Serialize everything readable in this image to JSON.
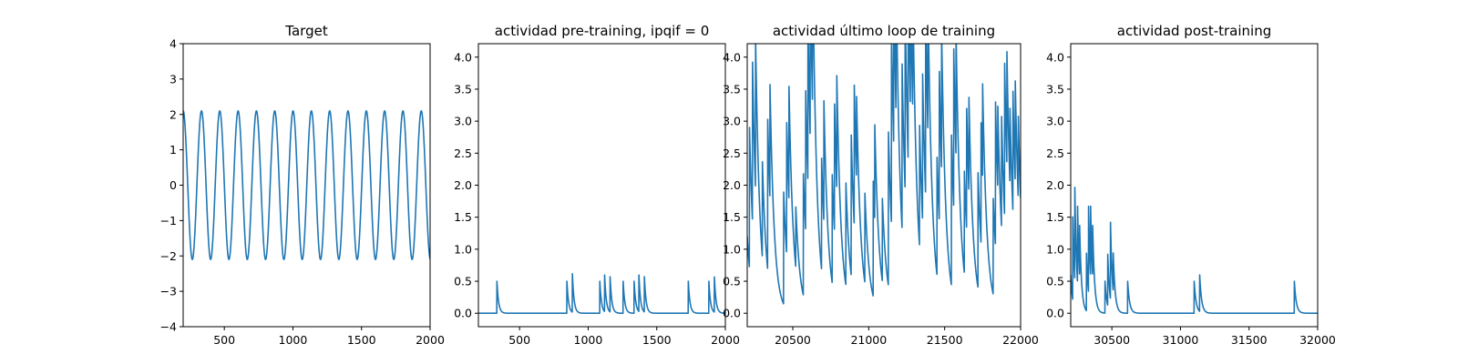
{
  "chart_data": [
    {
      "type": "line",
      "title": "Target",
      "xlim": [
        200,
        2000
      ],
      "ylim": [
        -4,
        4
      ],
      "xticks": [
        500,
        1000,
        1500,
        2000
      ],
      "yticks": [
        -4,
        -3,
        -2,
        -1,
        0,
        1,
        2,
        3,
        4
      ],
      "x_tick_labels": [
        "500",
        "1000",
        "1500",
        "2000"
      ],
      "y_tick_labels": [
        "−4",
        "−3",
        "−2",
        "−1",
        "0",
        "1",
        "2",
        "3",
        "4"
      ],
      "series": [
        {
          "kind": "sine",
          "amplitude": 2.1,
          "period": 133.5,
          "phase_x": 200,
          "color": "#1f77b4"
        }
      ]
    },
    {
      "type": "line",
      "title": "actividad pre-training, ipqif = 0",
      "xlim": [
        200,
        2000
      ],
      "ylim": [
        -0.21,
        4.21
      ],
      "xticks": [
        500,
        1000,
        1500,
        2000
      ],
      "yticks": [
        0.0,
        0.5,
        1.0,
        1.5,
        2.0,
        2.5,
        3.0,
        3.5,
        4.0
      ],
      "x_tick_labels": [
        "500",
        "1000",
        "1500",
        "2000"
      ],
      "y_tick_labels": [
        "0.0",
        "0.5",
        "1.0",
        "1.5",
        "2.0",
        "2.5",
        "3.0",
        "3.5",
        "4.0"
      ],
      "series": [
        {
          "kind": "decay_spikes",
          "tau": 12,
          "x_start": 200,
          "x_end": 2000,
          "spikes": [
            [
              335,
              0.5
            ],
            [
              845,
              0.5
            ],
            [
              885,
              0.6
            ],
            [
              1085,
              0.5
            ],
            [
              1120,
              0.57
            ],
            [
              1160,
              0.55
            ],
            [
              1255,
              0.5
            ],
            [
              1335,
              0.5
            ],
            [
              1370,
              0.57
            ],
            [
              1410,
              0.55
            ],
            [
              1730,
              0.5
            ],
            [
              1880,
              0.5
            ],
            [
              1920,
              0.55
            ]
          ],
          "color": "#1f77b4"
        }
      ]
    },
    {
      "type": "line",
      "title": "actividad último loop de training",
      "xlim": [
        20200,
        22000
      ],
      "ylim": [
        -0.21,
        4.21
      ],
      "xticks": [
        20500,
        21000,
        21500,
        22000
      ],
      "yticks": [
        0.0,
        0.5,
        1.0,
        1.5,
        2.0,
        2.5,
        3.0,
        3.5,
        4.0
      ],
      "x_tick_labels": [
        "20500",
        "21000",
        "21500",
        "22000"
      ],
      "y_tick_labels": [
        "0.0",
        "0.5",
        "1.0",
        "1.5",
        "2.0",
        "2.5",
        "3.0",
        "3.5",
        "4.0"
      ],
      "series": [
        {
          "kind": "decay_spikes",
          "tau": 28,
          "x_start": 20200,
          "x_end": 22000,
          "spikes": [
            [
              20200,
              1.2
            ],
            [
              20215,
              2.2
            ],
            [
              20235,
              2.5
            ],
            [
              20255,
              2.4
            ],
            [
              20300,
              1.5
            ],
            [
              20335,
              2.35
            ],
            [
              20350,
              1.8
            ],
            [
              20440,
              1.75
            ],
            [
              20460,
              2.05
            ],
            [
              20475,
              1.8
            ],
            [
              20520,
              0.95
            ],
            [
              20570,
              1.9
            ],
            [
              20585,
              2.2
            ],
            [
              20600,
              2.6
            ],
            [
              20615,
              2.8
            ],
            [
              20630,
              2.5
            ],
            [
              20690,
              1.75
            ],
            [
              20705,
              1.9
            ],
            [
              20760,
              1.7
            ],
            [
              20775,
              2.0
            ],
            [
              20790,
              1.8
            ],
            [
              20850,
              1.6
            ],
            [
              20885,
              2.2
            ],
            [
              20905,
              2.2
            ],
            [
              20920,
              1.3
            ],
            [
              20975,
              1.4
            ],
            [
              21030,
              1.8
            ],
            [
              21040,
              1.5
            ],
            [
              21090,
              1.3
            ],
            [
              21130,
              2.4
            ],
            [
              21150,
              3.05
            ],
            [
              21165,
              2.7
            ],
            [
              21180,
              2.3
            ],
            [
              21220,
              2.6
            ],
            [
              21240,
              2.9
            ],
            [
              21260,
              3.1
            ],
            [
              21275,
              2.2
            ],
            [
              21290,
              2.0
            ],
            [
              21335,
              1.9
            ],
            [
              21355,
              2.3
            ],
            [
              21375,
              2.95
            ],
            [
              21390,
              2.2
            ],
            [
              21450,
              1.85
            ],
            [
              21465,
              2.35
            ],
            [
              21480,
              2.2
            ],
            [
              21545,
              2.35
            ],
            [
              21560,
              2.5
            ],
            [
              21575,
              2.0
            ],
            [
              21630,
              1.6
            ],
            [
              21645,
              1.9
            ],
            [
              21660,
              1.5
            ],
            [
              21720,
              1.8
            ],
            [
              21740,
              1.9
            ],
            [
              21750,
              1.5
            ],
            [
              21820,
              1.5
            ],
            [
              21835,
              2.25
            ],
            [
              21850,
              1.3
            ],
            [
              21875,
              1.75
            ],
            [
              21895,
              2.4
            ],
            [
              21910,
              1.8
            ],
            [
              21930,
              1.2
            ],
            [
              21950,
              1.9
            ],
            [
              21965,
              1.6
            ],
            [
              21985,
              1.3
            ]
          ],
          "color": "#1f77b4"
        }
      ]
    },
    {
      "type": "line",
      "title": "actividad post-training",
      "xlim": [
        30200,
        32000
      ],
      "ylim": [
        -0.21,
        4.21
      ],
      "xticks": [
        30500,
        31000,
        31500,
        32000
      ],
      "yticks": [
        0.0,
        0.5,
        1.0,
        1.5,
        2.0,
        2.5,
        3.0,
        3.5,
        4.0
      ],
      "x_tick_labels": [
        "30500",
        "31000",
        "31500",
        "32000"
      ],
      "y_tick_labels": [
        "0.0",
        "0.5",
        "1.0",
        "1.5",
        "2.0",
        "2.5",
        "3.0",
        "3.5",
        "4.0"
      ],
      "series": [
        {
          "kind": "decay_spikes",
          "tau": 14,
          "x_start": 30200,
          "x_end": 32000,
          "spikes": [
            [
              30200,
              0.6
            ],
            [
              30215,
              1.3
            ],
            [
              30230,
              1.45
            ],
            [
              30250,
              1.2
            ],
            [
              30265,
              0.8
            ],
            [
              30315,
              0.9
            ],
            [
              30330,
              1.35
            ],
            [
              30345,
              1.1
            ],
            [
              30360,
              0.8
            ],
            [
              30450,
              0.5
            ],
            [
              30470,
              0.8
            ],
            [
              30490,
              1.2
            ],
            [
              30510,
              0.6
            ],
            [
              30615,
              0.5
            ],
            [
              31100,
              0.5
            ],
            [
              31140,
              0.57
            ],
            [
              31830,
              0.5
            ]
          ],
          "color": "#1f77b4"
        }
      ]
    }
  ]
}
